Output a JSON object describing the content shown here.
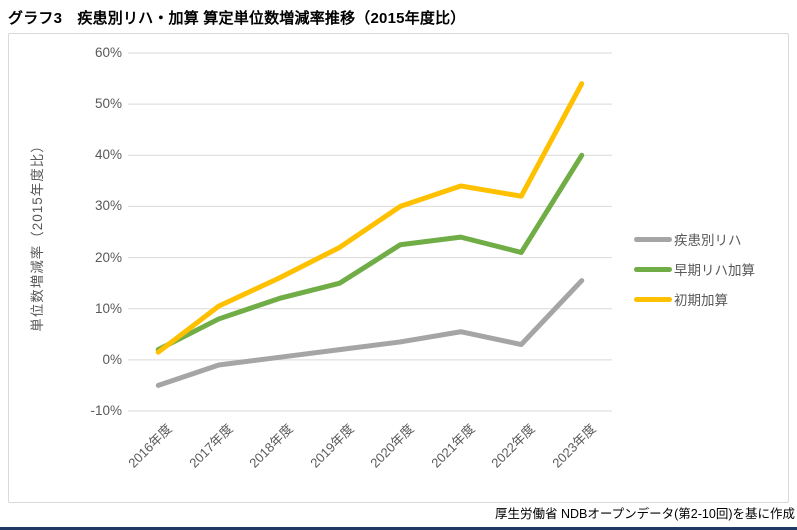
{
  "title": "グラフ3　疾患別リハ・加算 算定単位数増減率推移（2015年度比）",
  "footer": "厚生労働省 NDBオープンデータ(第2-10回)を基に作成",
  "colors": {
    "gridline": "#d9d9d9",
    "axis_text": "#595959",
    "frame_border": "#d9d9d9",
    "bottom_rule": "#203864"
  },
  "chart_data": {
    "type": "line",
    "title": "グラフ3　疾患別リハ・加算 算定単位数増減率推移（2015年度比）",
    "xlabel": "",
    "ylabel": "単位数増減率（2015年度比）",
    "categories": [
      "2016年度",
      "2017年度",
      "2018年度",
      "2019年度",
      "2020年度",
      "2021年度",
      "2022年度",
      "2023年度"
    ],
    "series": [
      {
        "name": "疾患別リハ",
        "color": "#a5a5a5",
        "values": [
          -5,
          -1,
          0.5,
          2,
          3.5,
          5.5,
          3,
          15.5
        ]
      },
      {
        "name": "早期リハ加算",
        "color": "#70ad47",
        "values": [
          2,
          8,
          12,
          15,
          22.5,
          24,
          21,
          40
        ]
      },
      {
        "name": "初期加算",
        "color": "#ffc000",
        "values": [
          1.5,
          10.5,
          16,
          22,
          30,
          34,
          32,
          54
        ]
      }
    ],
    "ylim": [
      -10,
      60
    ],
    "ytick_step": 10,
    "ytick_labels": [
      "60%",
      "50%",
      "40%",
      "30%",
      "20%",
      "10%",
      "0%",
      "-10%"
    ],
    "grid": true,
    "legend_position": "right"
  }
}
